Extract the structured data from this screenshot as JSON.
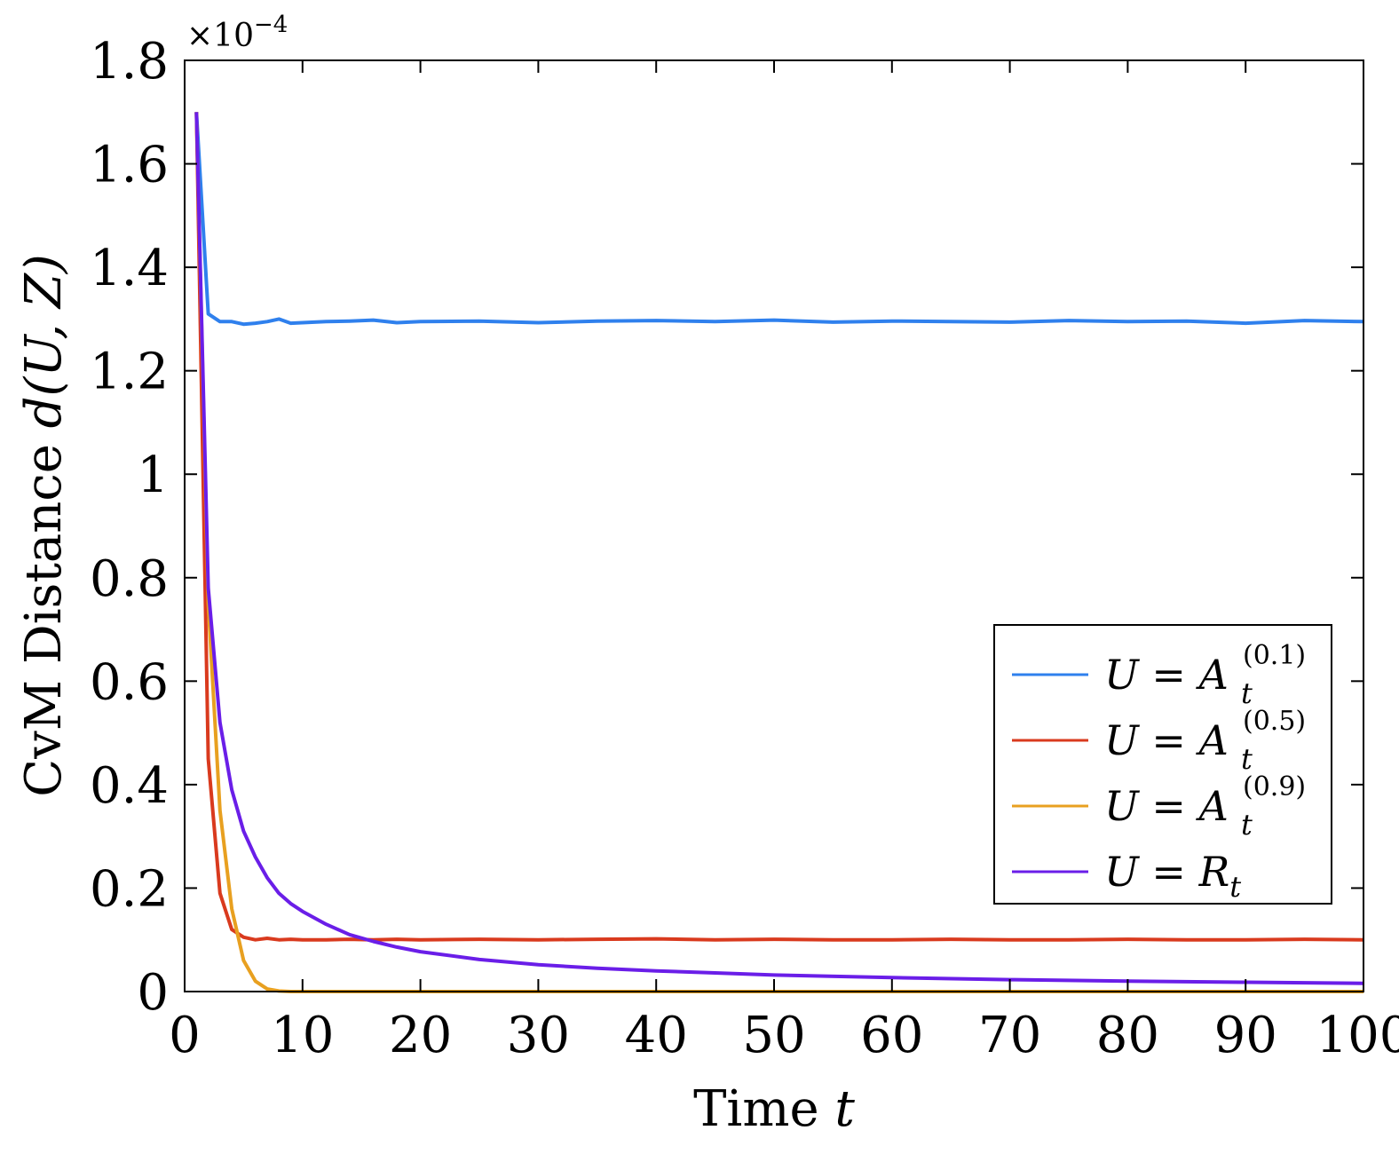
{
  "chart_data": {
    "type": "line",
    "xlabel": "Time",
    "xlabel_var": "t",
    "ylabel": "CvM Distance",
    "ylabel_var": "d(U, Z)",
    "y_multiplier": {
      "base": "×10",
      "exponent": "−4"
    },
    "xlim": [
      0,
      100
    ],
    "ylim": [
      0,
      1.8
    ],
    "x_ticks": [
      0,
      10,
      20,
      30,
      40,
      50,
      60,
      70,
      80,
      90,
      100
    ],
    "y_ticks": [
      0,
      0.2,
      0.4,
      0.6,
      0.8,
      1,
      1.2,
      1.4,
      1.6,
      1.8
    ],
    "grid": false,
    "legend_position": "lower-right",
    "series": [
      {
        "color": "#2f80ed",
        "legend": {
          "lhs": "U",
          "op": "=",
          "base": "A",
          "sub": "t",
          "sup": "(0.1)"
        },
        "x": [
          1,
          2,
          3,
          4,
          5,
          6,
          7,
          8,
          9,
          10,
          12,
          14,
          16,
          18,
          20,
          25,
          30,
          35,
          40,
          45,
          50,
          55,
          60,
          65,
          70,
          75,
          80,
          85,
          90,
          95,
          100
        ],
        "y": [
          1.7,
          1.31,
          1.295,
          1.295,
          1.29,
          1.292,
          1.295,
          1.3,
          1.292,
          1.293,
          1.295,
          1.296,
          1.298,
          1.293,
          1.295,
          1.296,
          1.293,
          1.296,
          1.297,
          1.295,
          1.298,
          1.294,
          1.296,
          1.295,
          1.294,
          1.297,
          1.295,
          1.296,
          1.292,
          1.297,
          1.295
        ]
      },
      {
        "color": "#d93a1e",
        "legend": {
          "lhs": "U",
          "op": "=",
          "base": "A",
          "sub": "t",
          "sup": "(0.5)"
        },
        "x": [
          1,
          2,
          3,
          4,
          5,
          6,
          7,
          8,
          9,
          10,
          12,
          14,
          16,
          18,
          20,
          25,
          30,
          35,
          40,
          45,
          50,
          55,
          60,
          65,
          70,
          75,
          80,
          85,
          90,
          95,
          100
        ],
        "y": [
          1.7,
          0.45,
          0.19,
          0.12,
          0.105,
          0.1,
          0.103,
          0.1,
          0.101,
          0.1,
          0.1,
          0.101,
          0.1,
          0.101,
          0.1,
          0.101,
          0.1,
          0.101,
          0.102,
          0.1,
          0.101,
          0.1,
          0.1,
          0.101,
          0.1,
          0.1,
          0.101,
          0.1,
          0.1,
          0.101,
          0.1
        ]
      },
      {
        "color": "#e8a020",
        "legend": {
          "lhs": "U",
          "op": "=",
          "base": "A",
          "sub": "t",
          "sup": "(0.9)"
        },
        "x": [
          1,
          2,
          3,
          4,
          5,
          6,
          7,
          8,
          9,
          10,
          12,
          15,
          20,
          30,
          40,
          50,
          60,
          70,
          80,
          90,
          100
        ],
        "y": [
          1.7,
          0.75,
          0.35,
          0.16,
          0.06,
          0.02,
          0.005,
          0.001,
          0.0,
          0.0,
          0.0,
          0.0,
          0.0,
          0.0,
          0.0,
          0.0,
          0.0,
          0.0,
          0.0,
          0.0,
          0.0
        ]
      },
      {
        "color": "#6a1ee8",
        "legend": {
          "lhs": "U",
          "op": "=",
          "base": "R",
          "sub": "t",
          "sup": ""
        },
        "x": [
          1,
          2,
          3,
          4,
          5,
          6,
          7,
          8,
          9,
          10,
          12,
          14,
          16,
          18,
          20,
          25,
          30,
          35,
          40,
          45,
          50,
          60,
          70,
          80,
          90,
          100
        ],
        "y": [
          1.7,
          0.78,
          0.52,
          0.39,
          0.31,
          0.26,
          0.22,
          0.19,
          0.17,
          0.155,
          0.13,
          0.11,
          0.097,
          0.086,
          0.077,
          0.062,
          0.052,
          0.045,
          0.04,
          0.036,
          0.032,
          0.027,
          0.023,
          0.02,
          0.018,
          0.016
        ]
      }
    ]
  }
}
